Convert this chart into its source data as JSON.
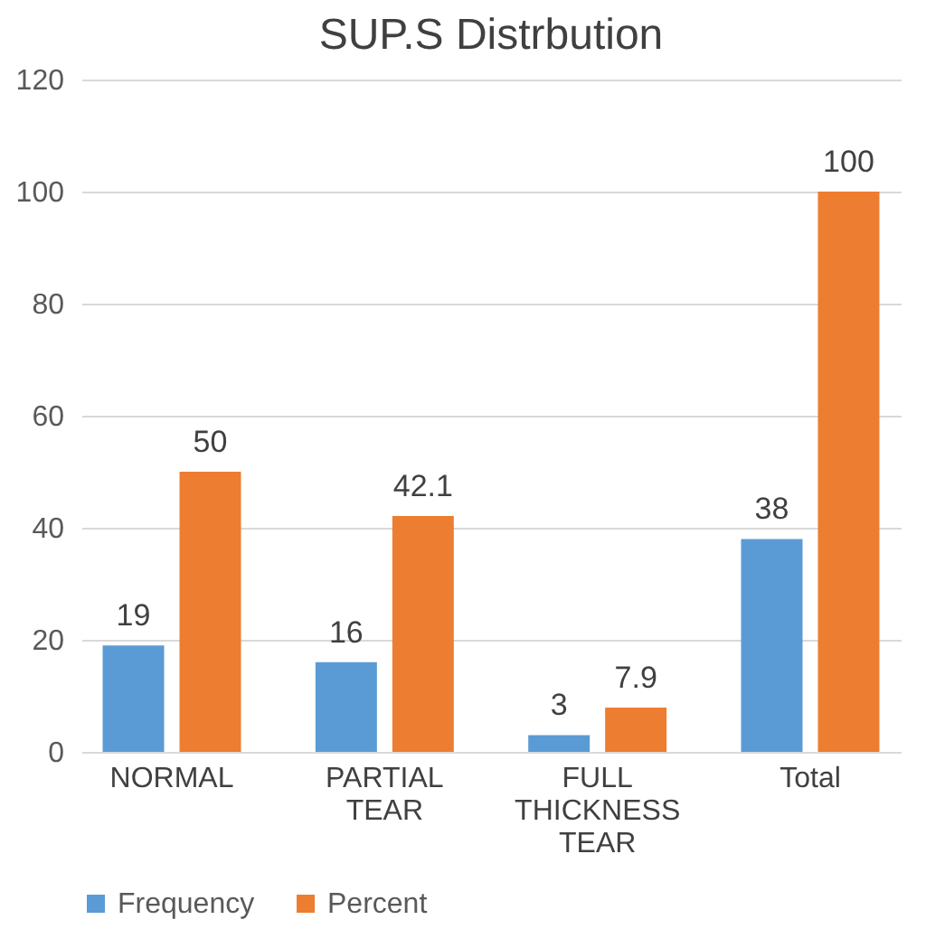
{
  "chart_data": {
    "type": "bar",
    "title": "SUP.S Distrbution",
    "categories": [
      "NORMAL",
      "PARTIAL TEAR",
      "FULL THICKNESS TEAR",
      "Total"
    ],
    "series": [
      {
        "name": "Frequency",
        "color": "#5b9bd5",
        "values": [
          19,
          16,
          3,
          38
        ]
      },
      {
        "name": "Percent",
        "color": "#ed7d31",
        "values": [
          50,
          42.1,
          7.9,
          100
        ]
      }
    ],
    "ylim": [
      0,
      120
    ],
    "yticks": [
      0,
      20,
      40,
      60,
      80,
      100,
      120
    ],
    "grid": "y",
    "legend": "bottom",
    "data_labels": true
  }
}
